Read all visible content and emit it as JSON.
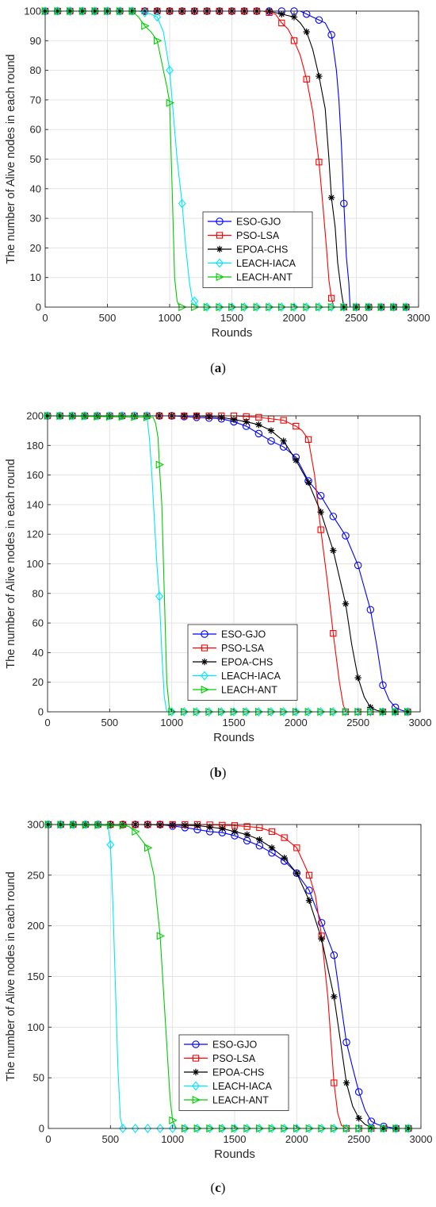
{
  "chart_data": [
    {
      "type": "line",
      "caption": [
        "(",
        "a",
        ")"
      ],
      "xlabel": "Rounds",
      "ylabel": "The number of Alive nodes in each round",
      "xlim": [
        0,
        3000
      ],
      "ylim": [
        0,
        100
      ],
      "xticks": [
        0,
        500,
        1000,
        1500,
        2000,
        2500,
        3000
      ],
      "yticks": [
        0,
        10,
        20,
        30,
        40,
        50,
        60,
        70,
        80,
        90,
        100
      ],
      "grid": true,
      "legend_position": "center-right",
      "series": [
        {
          "name": "ESO-GJO",
          "color": "#0000ff",
          "marker": "circle",
          "x": [
            0,
            1850,
            1950,
            2050,
            2150,
            2250,
            2300,
            2320,
            2340,
            2360,
            2380,
            2400,
            2420,
            2440,
            2450,
            2500,
            3000
          ],
          "y": [
            100,
            100,
            100,
            100,
            98,
            96,
            92,
            86,
            80,
            70,
            55,
            35,
            17,
            8,
            0,
            0,
            0
          ]
        },
        {
          "name": "PSO-LSA",
          "color": "#ff0000",
          "marker": "square",
          "x": [
            0,
            1750,
            1850,
            1900,
            1950,
            2000,
            2050,
            2100,
            2150,
            2200,
            2230,
            2260,
            2280,
            2300,
            2320,
            2400,
            3000
          ],
          "y": [
            100,
            100,
            99,
            96,
            94,
            90,
            85,
            77,
            66,
            49,
            35,
            20,
            9,
            3,
            0,
            0,
            0
          ]
        },
        {
          "name": "EPOA-CHS",
          "color": "#000000",
          "marker": "star",
          "x": [
            0,
            1800,
            1900,
            2000,
            2050,
            2100,
            2150,
            2200,
            2250,
            2280,
            2300,
            2330,
            2350,
            2380,
            2400,
            3000
          ],
          "y": [
            100,
            100,
            99,
            98,
            96,
            93,
            87,
            78,
            67,
            50,
            37,
            27,
            15,
            5,
            0,
            0
          ]
        },
        {
          "name": "LEACH-IACA",
          "color": "#00e5ff",
          "marker": "diamond",
          "x": [
            0,
            750,
            850,
            900,
            950,
            1000,
            1030,
            1060,
            1100,
            1130,
            1160,
            1180,
            1200,
            1230,
            3000
          ],
          "y": [
            100,
            100,
            99,
            98,
            93,
            80,
            65,
            50,
            35,
            20,
            8,
            3,
            2,
            0,
            0
          ]
        },
        {
          "name": "LEACH-ANT",
          "color": "#00cc00",
          "marker": "triangle",
          "x": [
            0,
            700,
            750,
            800,
            850,
            900,
            950,
            980,
            1000,
            1020,
            1040,
            1060,
            1080,
            3000
          ],
          "y": [
            100,
            100,
            98,
            95,
            93,
            90,
            80,
            74,
            69,
            40,
            10,
            2,
            0,
            0
          ]
        }
      ]
    },
    {
      "type": "line",
      "caption": [
        "(",
        "b",
        ")"
      ],
      "xlabel": "Rounds",
      "ylabel": "The number of Alive nodes in each round",
      "xlim": [
        0,
        3000
      ],
      "ylim": [
        0,
        200
      ],
      "xticks": [
        0,
        500,
        1000,
        1500,
        2000,
        2500,
        3000
      ],
      "yticks": [
        0,
        20,
        40,
        60,
        80,
        100,
        120,
        140,
        160,
        180,
        200
      ],
      "grid": true,
      "legend_position": "center-right",
      "series": [
        {
          "name": "ESO-GJO",
          "color": "#0000ff",
          "marker": "circle",
          "x": [
            0,
            1000,
            1200,
            1400,
            1500,
            1600,
            1700,
            1800,
            1900,
            2000,
            2100,
            2200,
            2300,
            2400,
            2500,
            2600,
            2650,
            2700,
            2750,
            2800,
            2850,
            2900,
            3000
          ],
          "y": [
            200,
            200,
            199,
            198,
            196,
            193,
            188,
            183,
            179,
            172,
            156,
            146,
            132,
            119,
            99,
            69,
            45,
            18,
            8,
            3,
            1,
            0,
            0
          ]
        },
        {
          "name": "PSO-LSA",
          "color": "#ff0000",
          "marker": "square",
          "x": [
            0,
            1200,
            1500,
            1700,
            1900,
            1950,
            2000,
            2050,
            2100,
            2150,
            2200,
            2250,
            2300,
            2350,
            2380,
            2400,
            3000
          ],
          "y": [
            200,
            200,
            200,
            199,
            197,
            195,
            193,
            190,
            184,
            160,
            123,
            90,
            53,
            20,
            5,
            0,
            0
          ]
        },
        {
          "name": "EPOA-CHS",
          "color": "#000000",
          "marker": "star",
          "x": [
            0,
            1200,
            1400,
            1600,
            1700,
            1800,
            1900,
            2000,
            2100,
            2200,
            2300,
            2400,
            2450,
            2500,
            2550,
            2600,
            2650,
            2700,
            3000
          ],
          "y": [
            200,
            200,
            199,
            196,
            194,
            190,
            183,
            170,
            155,
            135,
            109,
            73,
            45,
            23,
            10,
            3,
            1,
            0,
            0
          ]
        },
        {
          "name": "LEACH-IACA",
          "color": "#00e5ff",
          "marker": "diamond",
          "x": [
            0,
            800,
            820,
            840,
            860,
            880,
            900,
            920,
            940,
            960,
            3000
          ],
          "y": [
            200,
            200,
            185,
            160,
            130,
            100,
            78,
            40,
            10,
            0,
            0
          ]
        },
        {
          "name": "LEACH-ANT",
          "color": "#00cc00",
          "marker": "triangle",
          "x": [
            0,
            850,
            870,
            890,
            900,
            920,
            940,
            960,
            980,
            1000,
            3000
          ],
          "y": [
            200,
            199,
            195,
            185,
            167,
            140,
            80,
            20,
            3,
            0,
            0
          ]
        }
      ]
    },
    {
      "type": "line",
      "caption": [
        "(",
        "c",
        ")"
      ],
      "xlabel": "Rounds",
      "ylabel": "The number of Alive nodes in each round",
      "xlim": [
        0,
        3000
      ],
      "ylim": [
        0,
        300
      ],
      "xticks": [
        0,
        500,
        1000,
        1500,
        2000,
        2500,
        3000
      ],
      "yticks": [
        0,
        50,
        100,
        150,
        200,
        250,
        300
      ],
      "grid": true,
      "legend_position": "bottom-center",
      "series": [
        {
          "name": "ESO-GJO",
          "color": "#0000ff",
          "marker": "circle",
          "x": [
            0,
            900,
            1100,
            1300,
            1400,
            1500,
            1600,
            1700,
            1800,
            1900,
            2000,
            2100,
            2200,
            2300,
            2400,
            2450,
            2500,
            2550,
            2600,
            2650,
            2700,
            2750,
            2800,
            3000
          ],
          "y": [
            300,
            300,
            297,
            293,
            292,
            289,
            284,
            279,
            272,
            264,
            252,
            235,
            203,
            171,
            85,
            60,
            36,
            18,
            7,
            4,
            2,
            1,
            0,
            0
          ]
        },
        {
          "name": "PSO-LSA",
          "color": "#ff0000",
          "marker": "square",
          "x": [
            0,
            1200,
            1500,
            1700,
            1800,
            1900,
            2000,
            2100,
            2150,
            2200,
            2250,
            2300,
            2330,
            2360,
            2400,
            3000
          ],
          "y": [
            300,
            300,
            299,
            297,
            293,
            287,
            277,
            250,
            230,
            190,
            130,
            45,
            15,
            3,
            0,
            0
          ]
        },
        {
          "name": "EPOA-CHS",
          "color": "#000000",
          "marker": "star",
          "x": [
            0,
            700,
            1200,
            1400,
            1500,
            1600,
            1700,
            1800,
            1900,
            2000,
            2100,
            2200,
            2300,
            2350,
            2400,
            2450,
            2500,
            2550,
            2600,
            2650,
            3000
          ],
          "y": [
            300,
            300,
            299,
            296,
            293,
            290,
            285,
            277,
            267,
            252,
            225,
            187,
            130,
            88,
            45,
            22,
            10,
            4,
            1,
            0,
            0
          ]
        },
        {
          "name": "LEACH-IACA",
          "color": "#00e5ff",
          "marker": "diamond",
          "x": [
            0,
            480,
            500,
            520,
            540,
            560,
            580,
            600,
            3000
          ],
          "y": [
            300,
            300,
            280,
            220,
            140,
            60,
            10,
            0,
            0
          ]
        },
        {
          "name": "LEACH-ANT",
          "color": "#00cc00",
          "marker": "triangle",
          "x": [
            0,
            600,
            650,
            700,
            750,
            800,
            850,
            900,
            920,
            950,
            980,
            1000,
            1030,
            3000
          ],
          "y": [
            300,
            299,
            298,
            293,
            285,
            277,
            250,
            190,
            150,
            90,
            30,
            8,
            0,
            0
          ]
        }
      ]
    }
  ]
}
